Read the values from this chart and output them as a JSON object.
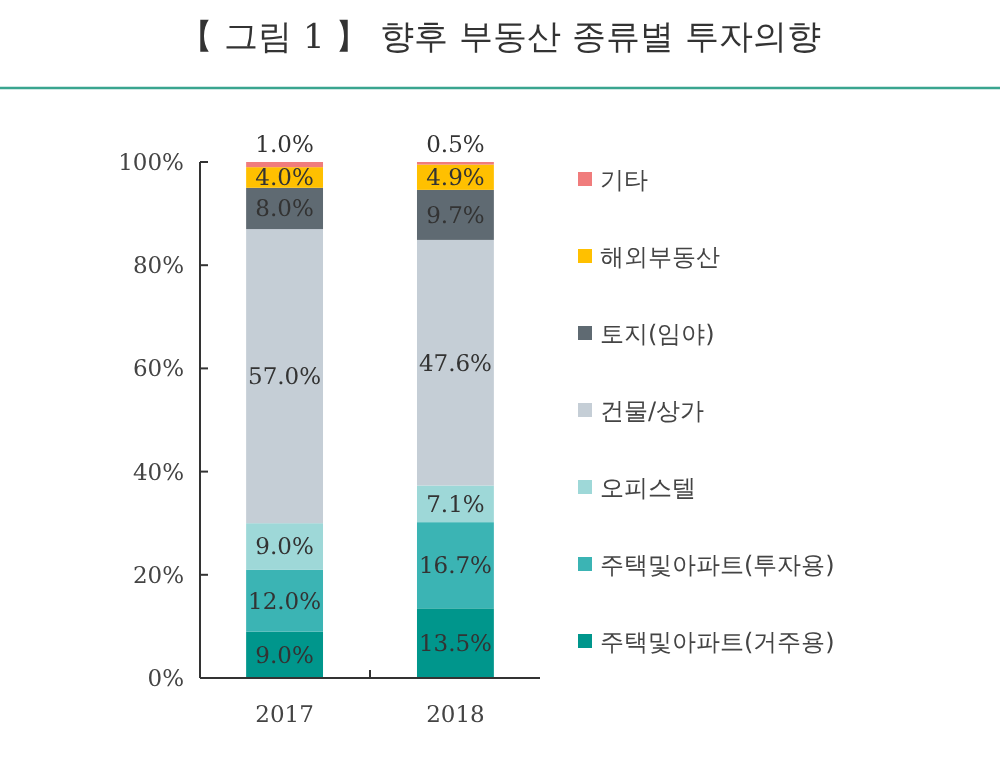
{
  "chart_data": {
    "type": "bar",
    "title": "【 그림 1 】  향후 부동산 종류별 투자의향",
    "stacked": true,
    "categories": [
      "2017",
      "2018"
    ],
    "ylim": [
      0,
      100
    ],
    "yticks": [
      {
        "value": 0,
        "label": "0%"
      },
      {
        "value": 20,
        "label": "20%"
      },
      {
        "value": 40,
        "label": "40%"
      },
      {
        "value": 60,
        "label": "60%"
      },
      {
        "value": 80,
        "label": "80%"
      },
      {
        "value": 100,
        "label": "100%"
      }
    ],
    "legend": "right",
    "grid": false,
    "series": [
      {
        "name": "주택및아파트(거주용)",
        "color": "#00968c",
        "values": [
          9.0,
          13.5
        ],
        "value_labels": [
          "9.0%",
          "13.5%"
        ]
      },
      {
        "name": "주택및아파트(투자용)",
        "color": "#3bb4b4",
        "values": [
          12.0,
          16.7
        ],
        "value_labels": [
          "12.0%",
          "16.7%"
        ]
      },
      {
        "name": "오피스텔",
        "color": "#9ed8d8",
        "values": [
          9.0,
          7.1
        ],
        "value_labels": [
          "9.0%",
          "7.1%"
        ]
      },
      {
        "name": "건물/상가",
        "color": "#c5ced6",
        "values": [
          57.0,
          47.6
        ],
        "value_labels": [
          "57.0%",
          "47.6%"
        ]
      },
      {
        "name": "토지(임야)",
        "color": "#5f6a72",
        "values": [
          8.0,
          9.7
        ],
        "value_labels": [
          "8.0%",
          "9.7%"
        ]
      },
      {
        "name": "해외부동산",
        "color": "#ffc000",
        "values": [
          4.0,
          4.9
        ],
        "value_labels": [
          "4.0%",
          "4.9%"
        ]
      },
      {
        "name": "기타",
        "color": "#f07c7c",
        "values": [
          1.0,
          0.5
        ],
        "value_labels": [
          "1.0%",
          "0.5%"
        ]
      }
    ]
  }
}
